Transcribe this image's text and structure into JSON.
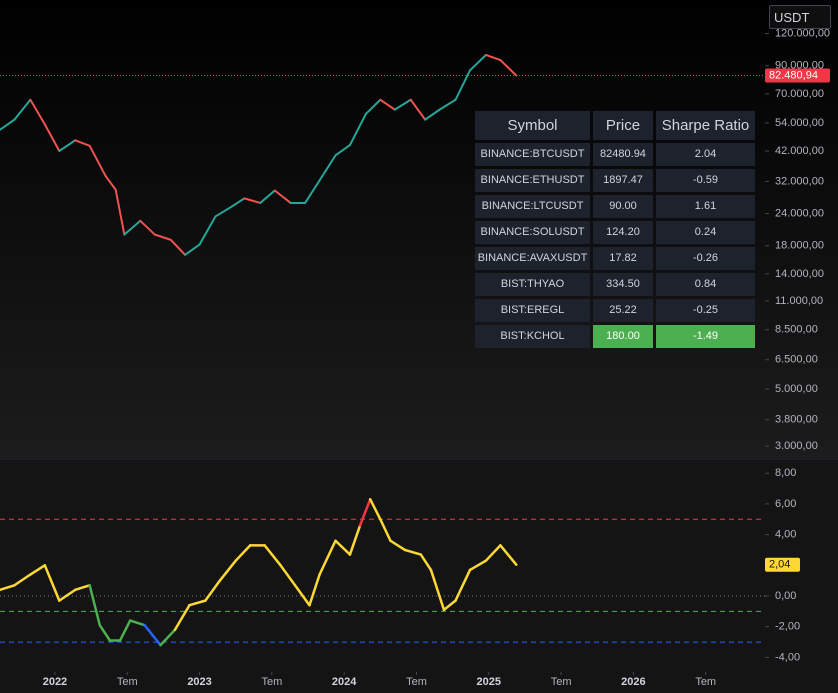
{
  "currency": "USDT",
  "table": {
    "columns": [
      "Symbol",
      "Price",
      "Sharpe Ratio"
    ],
    "rows": [
      {
        "cells": [
          "BINANCE:BTCUSDT",
          "82480.94",
          "2.04"
        ]
      },
      {
        "cells": [
          "BINANCE:ETHUSDT",
          "1897.47",
          "-0.59"
        ]
      },
      {
        "cells": [
          "BINANCE:LTCUSDT",
          "90.00",
          "1.61"
        ]
      },
      {
        "cells": [
          "BINANCE:SOLUSDT",
          "124.20",
          "0.24"
        ]
      },
      {
        "cells": [
          "BINANCE:AVAXUSDT",
          "17.82",
          "-0.26"
        ]
      },
      {
        "cells": [
          "BIST:THYAO",
          "334.50",
          "0.84"
        ]
      },
      {
        "cells": [
          "BIST:EREGL",
          "25.22",
          "-0.25"
        ]
      },
      {
        "cells": [
          "BIST:KCHOL",
          "180.00",
          "-1.49"
        ],
        "highlight": "#4caf50"
      }
    ]
  },
  "chart_data": [
    {
      "type": "line",
      "log_scale": true,
      "xlim": [
        2021.62,
        2026.91
      ],
      "xticks": [
        2022,
        {
          "value": 2022.5,
          "label": "Tem"
        },
        2023,
        {
          "value": 2023.5,
          "label": "Tem"
        },
        2024,
        {
          "value": 2024.5,
          "label": "Tem"
        },
        2025,
        {
          "value": 2025.5,
          "label": "Tem"
        },
        2026,
        {
          "value": 2026.5,
          "label": "Tem"
        }
      ],
      "ylim": [
        2700,
        162000
      ],
      "yticks": [
        {
          "value": 120000,
          "label": "120.000,00"
        },
        {
          "value": 90000,
          "label": "90.000,00"
        },
        {
          "value": 70000,
          "label": "70.000,00"
        },
        {
          "value": 54000,
          "label": "54.000,00"
        },
        {
          "value": 42000,
          "label": "42.000,00"
        },
        {
          "value": 32000,
          "label": "32.000,00"
        },
        {
          "value": 24000,
          "label": "24.000,00"
        },
        {
          "value": 18000,
          "label": "18.000,00"
        },
        {
          "value": 14000,
          "label": "14.000,00"
        },
        {
          "value": 11000,
          "label": "11.000,00"
        },
        {
          "value": 8500,
          "label": "8.500,00"
        },
        {
          "value": 6500,
          "label": "6.500,00"
        },
        {
          "value": 5000,
          "label": "5.000,00"
        },
        {
          "value": 3800,
          "label": "3.800,00"
        },
        {
          "value": 3000,
          "label": "3.000,00"
        }
      ],
      "last_value": {
        "value": 82480.94,
        "label": "82.480,94"
      },
      "last_color": "#f23645",
      "series": [
        {
          "up_color": "#26a69a",
          "down_color": "#ef5350",
          "x": [
            2021.62,
            2021.72,
            2021.83,
            2021.93,
            2022.03,
            2022.14,
            2022.24,
            2022.35,
            2022.42,
            2022.48,
            2022.59,
            2022.69,
            2022.8,
            2022.9,
            2023.0,
            2023.11,
            2023.21,
            2023.31,
            2023.42,
            2023.52,
            2023.63,
            2023.73,
            2023.83,
            2023.94,
            2024.04,
            2024.15,
            2024.25,
            2024.35,
            2024.46,
            2024.56,
            2024.66,
            2024.77,
            2024.87,
            2024.98,
            2025.08,
            2025.19
          ],
          "values": [
            50800,
            55600,
            66400,
            53300,
            42000,
            46200,
            44000,
            33600,
            29700,
            19900,
            22500,
            19900,
            19000,
            16600,
            18200,
            23400,
            25300,
            27500,
            26400,
            29500,
            26400,
            26400,
            32300,
            40400,
            44300,
            58500,
            66400,
            60800,
            66400,
            55600,
            60800,
            66400,
            86400,
            99100,
            94700,
            82480.94
          ]
        }
      ]
    },
    {
      "type": "line",
      "xlim": [
        2021.62,
        2026.91
      ],
      "ylim": [
        -4.95,
        8.86
      ],
      "yticks": [
        {
          "value": 8,
          "label": "8,00"
        },
        {
          "value": 6,
          "label": "6,00"
        },
        {
          "value": 4,
          "label": "4,00"
        },
        {
          "value": 0,
          "label": "0,00"
        },
        {
          "value": -2,
          "label": "-2,00"
        },
        {
          "value": -4,
          "label": "-4,00"
        }
      ],
      "last_value": {
        "value": 2.04,
        "label": "2,04"
      },
      "levels": [
        {
          "value": 5,
          "color": "#f23645",
          "zone": "above"
        },
        {
          "value": 0,
          "color": "#787b86"
        },
        {
          "value": -1,
          "color": "#4caf50",
          "zone": "below"
        },
        {
          "value": -3,
          "color": "#2962ff",
          "zone": "below"
        }
      ],
      "series": [
        {
          "color": "#fdd835",
          "x": [
            2021.62,
            2021.72,
            2021.83,
            2021.93,
            2022.03,
            2022.14,
            2022.24,
            2022.31,
            2022.38,
            2022.45,
            2022.52,
            2022.62,
            2022.73,
            2022.83,
            2022.93,
            2023.04,
            2023.14,
            2023.25,
            2023.35,
            2023.45,
            2023.56,
            2023.66,
            2023.76,
            2023.83,
            2023.94,
            2024.04,
            2024.11,
            2024.18,
            2024.25,
            2024.32,
            2024.42,
            2024.53,
            2024.6,
            2024.69,
            2024.77,
            2024.87,
            2024.98,
            2025.08,
            2025.19
          ],
          "values": [
            0.4,
            0.7,
            1.4,
            2.0,
            -0.3,
            0.4,
            0.7,
            -1.9,
            -2.9,
            -2.9,
            -1.6,
            -1.9,
            -3.2,
            -2.2,
            -0.6,
            -0.3,
            1.0,
            2.3,
            3.3,
            3.3,
            2.0,
            0.7,
            -0.6,
            1.4,
            3.6,
            2.7,
            4.6,
            6.3,
            5.0,
            3.6,
            3.0,
            2.7,
            1.7,
            -0.9,
            -0.3,
            1.7,
            2.3,
            3.3,
            2.04
          ]
        }
      ]
    }
  ]
}
